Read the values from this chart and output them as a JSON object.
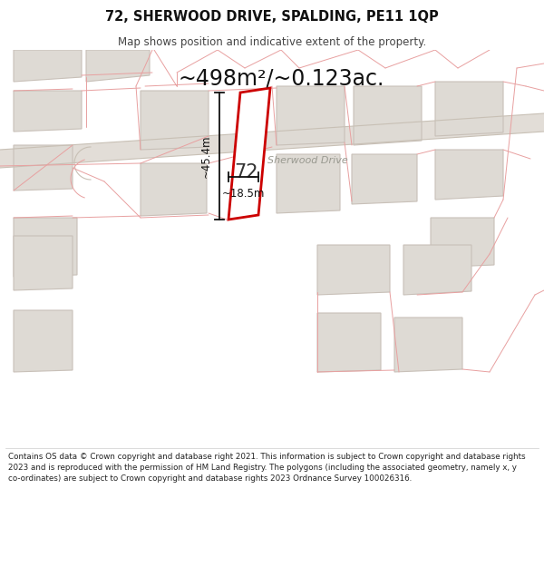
{
  "title": "72, SHERWOOD DRIVE, SPALDING, PE11 1QP",
  "subtitle": "Map shows position and indicative extent of the property.",
  "area_text": "~498m²/~0.123ac.",
  "label_72": "72",
  "dim_height": "~45.4m",
  "dim_width": "~18.5m",
  "road_label": "Sherwood Drive",
  "footer": "Contains OS data © Crown copyright and database right 2021. This information is subject to Crown copyright and database rights 2023 and is reproduced with the permission of HM Land Registry. The polygons (including the associated geometry, namely x, y co-ordinates) are subject to Crown copyright and database rights 2023 Ordnance Survey 100026316.",
  "map_bg": "#f2f0ed",
  "road_fill": "#dedad4",
  "building_fill": "#dedad4",
  "building_edge": "#c8c0b8",
  "plot_line_color": "#cc0000",
  "boundary_color": "#e8a0a0",
  "dim_line_color": "#111111",
  "road_text_color": "#999990",
  "title_color": "#111111",
  "footer_color": "#222222",
  "white": "#ffffff"
}
